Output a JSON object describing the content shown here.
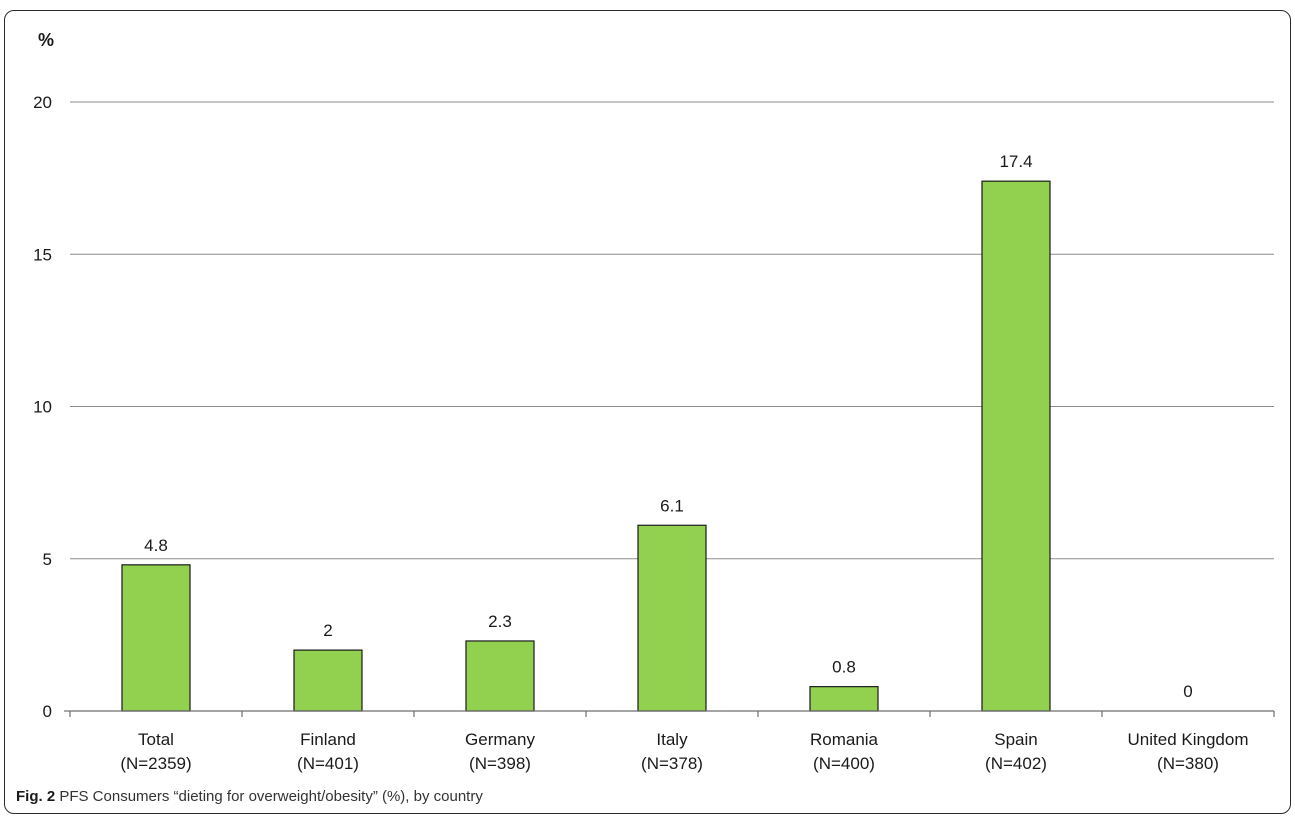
{
  "figure": {
    "caption_label": "Fig. 2",
    "caption_text": "PFS Consumers “dieting for overweight/obesity” (%), by country"
  },
  "chart_data": {
    "type": "bar",
    "ylabel": "%",
    "xlabel": "",
    "ylim": [
      0,
      20
    ],
    "yticks": [
      0,
      5,
      10,
      15,
      20
    ],
    "grid": true,
    "categories": [
      "Total\n(N=2359)",
      "Finland\n(N=401)",
      "Germany\n(N=398)",
      "Italy\n(N=378)",
      "Romania\n(N=400)",
      "Spain\n(N=402)",
      "United Kingdom\n(N=380)"
    ],
    "values": [
      4.8,
      2,
      2.3,
      6.1,
      0.8,
      17.4,
      0
    ],
    "data_labels": [
      "4.8",
      "2",
      "2.3",
      "6.1",
      "0.8",
      "17.4",
      "0"
    ],
    "colors": {
      "bar_fill": "#92d050",
      "bar_stroke": "#1a1a1a",
      "grid": "#8c8c8c",
      "axis": "#6e6e6e",
      "text": "#1a1a1a"
    }
  }
}
